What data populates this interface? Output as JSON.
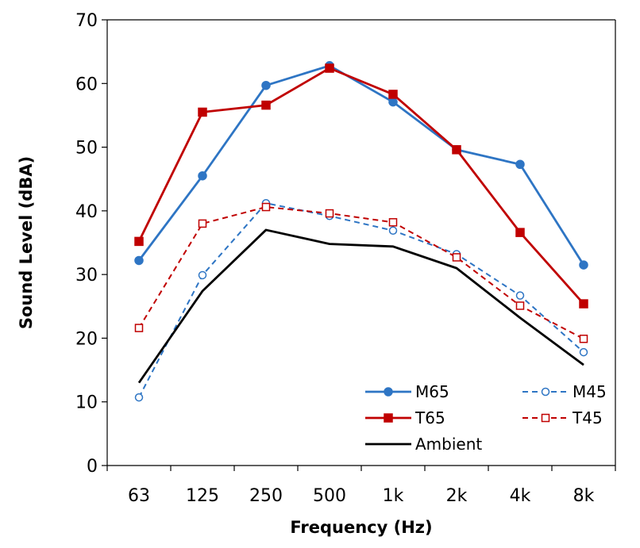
{
  "chart_data": {
    "type": "line",
    "title": "",
    "xlabel": "Frequency (Hz)",
    "ylabel": "Sound Level (dBA)",
    "categories": [
      "63",
      "125",
      "250",
      "500",
      "1k",
      "2k",
      "4k",
      "8k"
    ],
    "ylim": [
      0,
      70
    ],
    "yticks": [
      "0",
      "10",
      "20",
      "30",
      "40",
      "50",
      "60",
      "70"
    ],
    "grid": false,
    "legend_position": "bottom-right",
    "series": [
      {
        "name": "M65",
        "values": [
          32.2,
          45.5,
          59.7,
          62.8,
          57.1,
          49.6,
          47.3,
          31.5
        ],
        "color": "#2e75c4",
        "dash": false,
        "marker": "circle",
        "filled": true
      },
      {
        "name": "M45",
        "values": [
          10.7,
          29.9,
          41.2,
          39.2,
          36.9,
          33.2,
          26.7,
          17.8
        ],
        "color": "#2e75c4",
        "dash": true,
        "marker": "circle",
        "filled": false
      },
      {
        "name": "T65",
        "values": [
          35.2,
          55.5,
          56.6,
          62.4,
          58.3,
          49.6,
          36.6,
          25.4
        ],
        "color": "#c00000",
        "dash": false,
        "marker": "square",
        "filled": true
      },
      {
        "name": "T45",
        "values": [
          21.6,
          38.0,
          40.6,
          39.6,
          38.2,
          32.7,
          25.1,
          19.9
        ],
        "color": "#c00000",
        "dash": true,
        "marker": "square",
        "filled": false
      },
      {
        "name": "Ambient",
        "values": [
          13.0,
          27.4,
          37.0,
          34.8,
          34.4,
          31.0,
          23.2,
          15.8
        ],
        "color": "#000000",
        "dash": false,
        "marker": "none",
        "filled": false
      }
    ]
  }
}
